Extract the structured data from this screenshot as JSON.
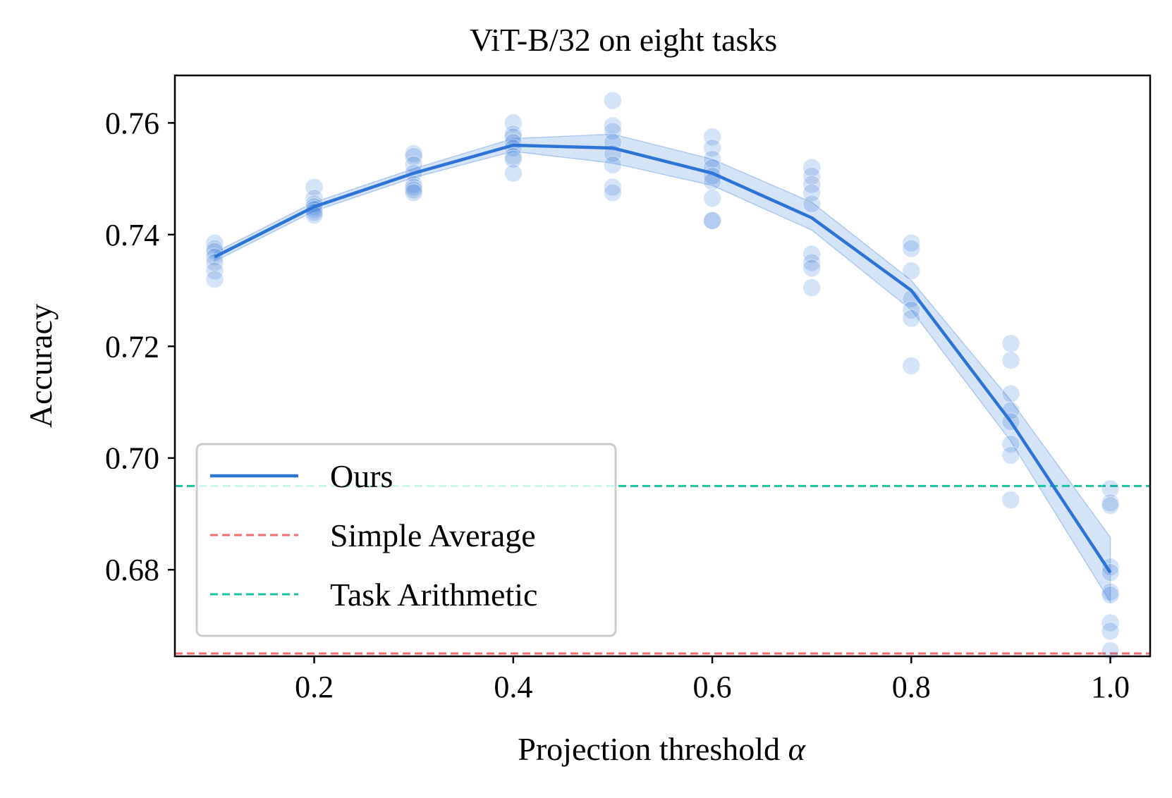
{
  "chart_data": {
    "type": "line",
    "title": "ViT-B/32 on eight tasks",
    "xlabel": "Projection threshold ",
    "xlabel_symbol": "α",
    "ylabel": "Accuracy",
    "xlim": [
      0.06,
      1.04
    ],
    "ylim": [
      0.6645,
      0.7685
    ],
    "x_ticks": [
      0.2,
      0.4,
      0.6,
      0.8,
      1.0
    ],
    "x_tick_labels": [
      "0.2",
      "0.4",
      "0.6",
      "0.8",
      "1.0"
    ],
    "y_ticks": [
      0.68,
      0.7,
      0.72,
      0.74,
      0.76
    ],
    "y_tick_labels": [
      "0.68",
      "0.70",
      "0.72",
      "0.74",
      "0.76"
    ],
    "series": [
      {
        "name": "Ours",
        "style": "solid",
        "color": "#2E74D6",
        "x": [
          0.1,
          0.2,
          0.3,
          0.4,
          0.5,
          0.6,
          0.7,
          0.8,
          0.9,
          1.0
        ],
        "y": [
          0.736,
          0.745,
          0.751,
          0.756,
          0.7555,
          0.751,
          0.743,
          0.73,
          0.7065,
          0.6795
        ],
        "band_lower": [
          0.7352,
          0.7442,
          0.7502,
          0.7549,
          0.7528,
          0.7488,
          0.7408,
          0.7265,
          0.703,
          0.6742
        ],
        "band_upper": [
          0.7368,
          0.7458,
          0.7518,
          0.7572,
          0.758,
          0.7535,
          0.7458,
          0.7318,
          0.7103,
          0.6858
        ]
      },
      {
        "name": "Simple Average",
        "style": "dashed",
        "color": "#F26C6C",
        "constant": 0.665
      },
      {
        "name": "Task Arithmetic",
        "style": "dashed",
        "color": "#15C4A0",
        "constant": 0.695
      }
    ],
    "scatter_points": [
      {
        "x": 0.1,
        "y": [
          0.7385,
          0.7375,
          0.737,
          0.736,
          0.735,
          0.7335,
          0.732
        ]
      },
      {
        "x": 0.2,
        "y": [
          0.7485,
          0.7465,
          0.7455,
          0.745,
          0.7445,
          0.744,
          0.7435
        ]
      },
      {
        "x": 0.3,
        "y": [
          0.7545,
          0.754,
          0.7525,
          0.751,
          0.749,
          0.7485,
          0.748,
          0.7475
        ]
      },
      {
        "x": 0.4,
        "y": [
          0.76,
          0.758,
          0.7575,
          0.7565,
          0.7555,
          0.754,
          0.7535,
          0.751
        ]
      },
      {
        "x": 0.5,
        "y": [
          0.764,
          0.7595,
          0.7585,
          0.7565,
          0.7545,
          0.7525,
          0.7485,
          0.7475
        ]
      },
      {
        "x": 0.6,
        "y": [
          0.7575,
          0.7555,
          0.7535,
          0.752,
          0.7505,
          0.7495,
          0.7465,
          0.7425,
          0.7425
        ]
      },
      {
        "x": 0.7,
        "y": [
          0.752,
          0.7505,
          0.749,
          0.7475,
          0.7455,
          0.7365,
          0.735,
          0.734,
          0.7305
        ]
      },
      {
        "x": 0.8,
        "y": [
          0.7385,
          0.7375,
          0.7335,
          0.7285,
          0.7265,
          0.725,
          0.7165
        ]
      },
      {
        "x": 0.9,
        "y": [
          0.7205,
          0.7175,
          0.7115,
          0.7085,
          0.7065,
          0.7025,
          0.7005,
          0.6925
        ]
      },
      {
        "x": 1.0,
        "y": [
          0.6945,
          0.692,
          0.6915,
          0.6805,
          0.6795,
          0.676,
          0.6755,
          0.6705,
          0.669,
          0.6655
        ]
      }
    ],
    "legend": {
      "position": "lower-left",
      "entries": [
        "Ours",
        "Simple Average",
        "Task Arithmetic"
      ]
    },
    "band_color": "#2E74D6",
    "point_color": "#2E74D6"
  }
}
